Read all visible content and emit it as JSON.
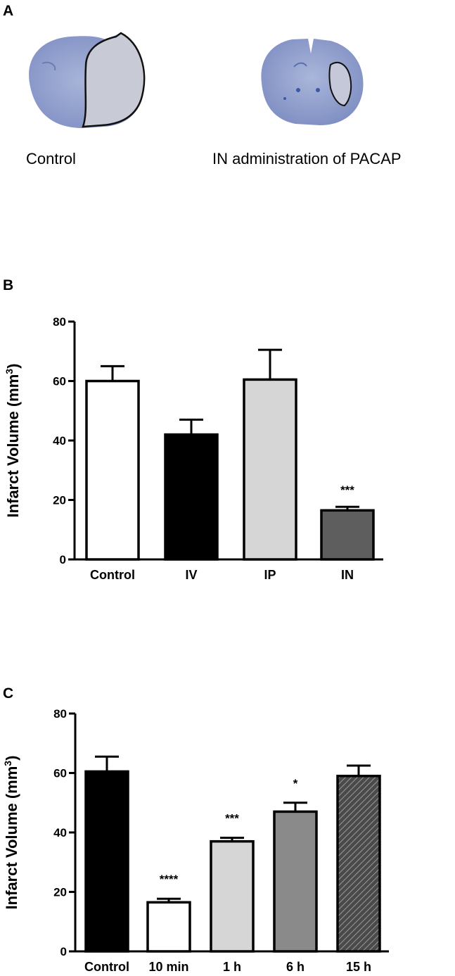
{
  "panels": {
    "a": {
      "letter": "A",
      "captions": [
        "Control",
        "IN administration of PACAP"
      ]
    },
    "b": {
      "letter": "B"
    },
    "c": {
      "letter": "C"
    }
  },
  "chart_data": [
    {
      "type": "bar",
      "ylabel_main": "Infarct Volume (mm",
      "ylabel_sup": "3",
      "ylabel_close": ")",
      "ylim": [
        0,
        80
      ],
      "yticks": [
        0,
        20,
        40,
        60,
        80
      ],
      "grid": false,
      "categories": [
        "Control",
        "IV",
        "IP",
        "IN"
      ],
      "values": [
        60,
        42,
        60.5,
        16.5
      ],
      "errors": [
        5,
        5,
        10,
        1.2
      ],
      "significance": [
        "",
        "",
        "",
        "***"
      ],
      "fills": [
        "#ffffff",
        "#000000",
        "#d6d6d6",
        "#5e5e5e"
      ]
    },
    {
      "type": "bar",
      "ylabel_main": "Infarct Volume (mm",
      "ylabel_sup": "3",
      "ylabel_close": ")",
      "ylim": [
        0,
        80
      ],
      "yticks": [
        0,
        20,
        40,
        60,
        80
      ],
      "grid": false,
      "categories": [
        "Control",
        "10 min",
        "1 h",
        "6 h",
        "15 h"
      ],
      "values": [
        60.5,
        16.5,
        37,
        47,
        59
      ],
      "errors": [
        5,
        1.2,
        1.2,
        3,
        3.5
      ],
      "significance": [
        "",
        "****",
        "***",
        "*",
        ""
      ],
      "fills": [
        "#000000",
        "#ffffff",
        "#d6d6d6",
        "#8a8a8a",
        "hatch"
      ]
    }
  ]
}
